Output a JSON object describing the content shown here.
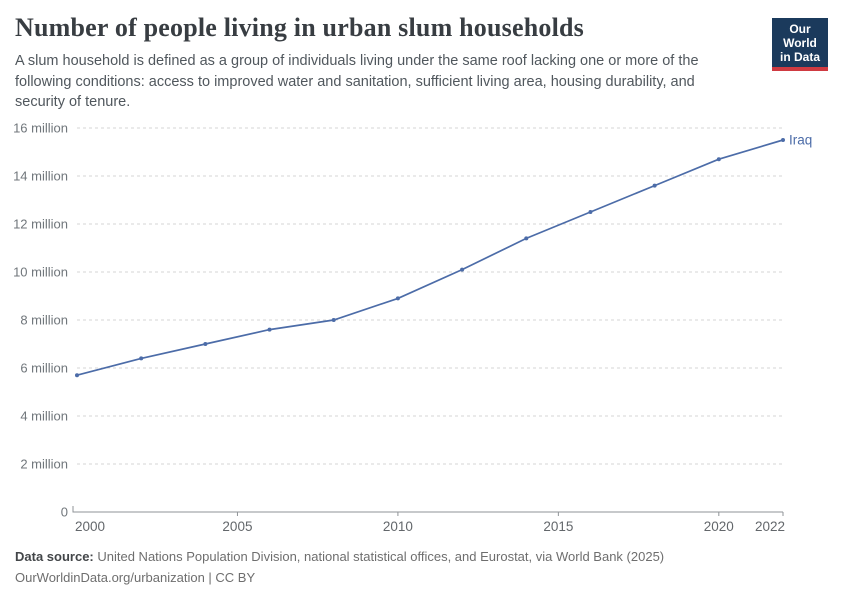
{
  "header": {
    "title": "Number of people living in urban slum households",
    "subtitle": "A slum household is defined as a group of individuals living under the same roof lacking one or more of the following conditions: access to improved water and sanitation, sufficient living area, housing durability, and security of tenure.",
    "logo": {
      "line1": "Our World",
      "line2": "in Data"
    }
  },
  "chart_data": {
    "type": "line",
    "title": "Number of people living in urban slum households",
    "x": [
      2000,
      2002,
      2004,
      2006,
      2008,
      2010,
      2012,
      2014,
      2016,
      2018,
      2020,
      2022
    ],
    "series": [
      {
        "name": "Iraq",
        "color": "#4C6CA8",
        "values": [
          5.7,
          6.4,
          7.0,
          7.6,
          8.0,
          8.9,
          10.1,
          11.4,
          12.5,
          13.6,
          14.7,
          15.5
        ]
      }
    ],
    "unit": "people (millions)",
    "xlim": [
      2000,
      2022
    ],
    "ylim": [
      0,
      16
    ],
    "grid": "horizontal-dashed",
    "legend_position": "end-of-line",
    "y_ticks": [
      {
        "value": 0,
        "label": "0"
      },
      {
        "value": 2,
        "label": "2 million"
      },
      {
        "value": 4,
        "label": "4 million"
      },
      {
        "value": 6,
        "label": "6 million"
      },
      {
        "value": 8,
        "label": "8 million"
      },
      {
        "value": 10,
        "label": "10 million"
      },
      {
        "value": 12,
        "label": "12 million"
      },
      {
        "value": 14,
        "label": "14 million"
      },
      {
        "value": 16,
        "label": "16 million"
      }
    ],
    "x_ticks": [
      {
        "value": 2000,
        "label": "2000",
        "align": "start"
      },
      {
        "value": 2005,
        "label": "2005",
        "align": "middle"
      },
      {
        "value": 2010,
        "label": "2010",
        "align": "middle"
      },
      {
        "value": 2015,
        "label": "2015",
        "align": "middle"
      },
      {
        "value": 2020,
        "label": "2020",
        "align": "middle"
      },
      {
        "value": 2022,
        "label": "2022",
        "align": "end"
      }
    ]
  },
  "colors": {
    "line": "#4C6CA8",
    "grid": "#d5d5d5",
    "axis": "#8f9397",
    "logo_bg": "#1b3a5c",
    "logo_red": "#cf3a41"
  },
  "footer": {
    "source_label": "Data source:",
    "source_text": " United Nations Population Division, national statistical offices, and Eurostat, via World Bank (2025)",
    "link_line": "OurWorldinData.org/urbanization | CC BY"
  }
}
